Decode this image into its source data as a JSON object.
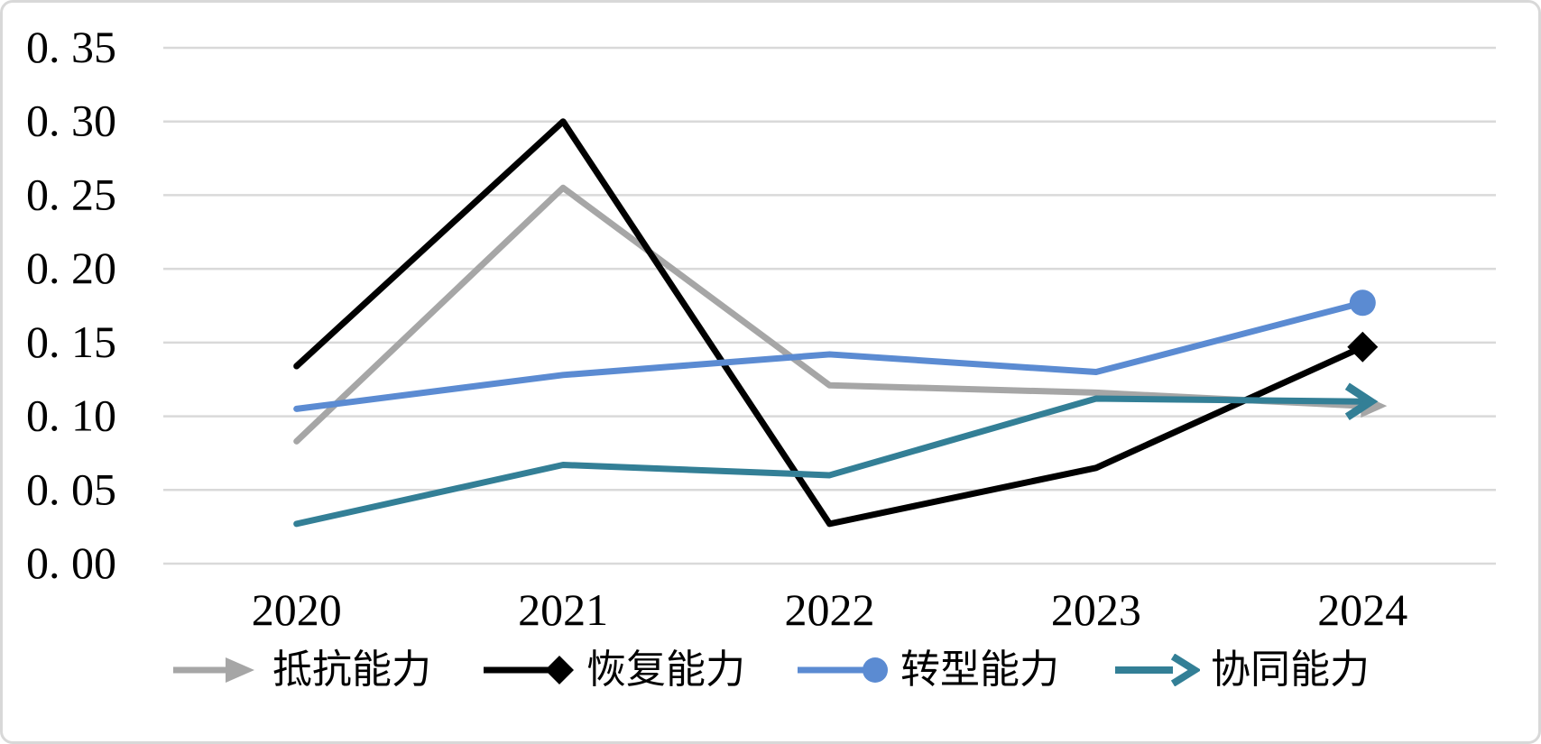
{
  "chart_data": {
    "type": "line",
    "categories": [
      "2020",
      "2021",
      "2022",
      "2023",
      "2024"
    ],
    "series": [
      {
        "name": "抵抗能力",
        "color": "#a6a6a6",
        "marker": "arrow-solid",
        "values": [
          0.083,
          0.255,
          0.121,
          0.116,
          0.107
        ]
      },
      {
        "name": "恢复能力",
        "color": "#000000",
        "marker": "diamond",
        "values": [
          0.134,
          0.3,
          0.027,
          0.065,
          0.147
        ]
      },
      {
        "name": "转型能力",
        "color": "#5b8bd2",
        "marker": "circle",
        "values": [
          0.105,
          0.128,
          0.142,
          0.13,
          0.177
        ]
      },
      {
        "name": "协同能力",
        "color": "#337f96",
        "marker": "chevron-arrow",
        "values": [
          0.027,
          0.067,
          0.06,
          0.112,
          0.11
        ]
      }
    ],
    "title": "",
    "xlabel": "",
    "ylabel": "",
    "ylim": [
      0,
      0.35
    ],
    "ytick_step": 0.05,
    "ytick_labels": [
      "0. 00",
      "0. 05",
      "0. 10",
      "0. 15",
      "0. 20",
      "0. 25",
      "0. 30",
      "0. 35"
    ],
    "grid": "horizontal",
    "gridline_color": "#d9d9d9",
    "axis_text_color": "#000000",
    "legend_position": "bottom",
    "markers_shown": "last-point-only"
  }
}
